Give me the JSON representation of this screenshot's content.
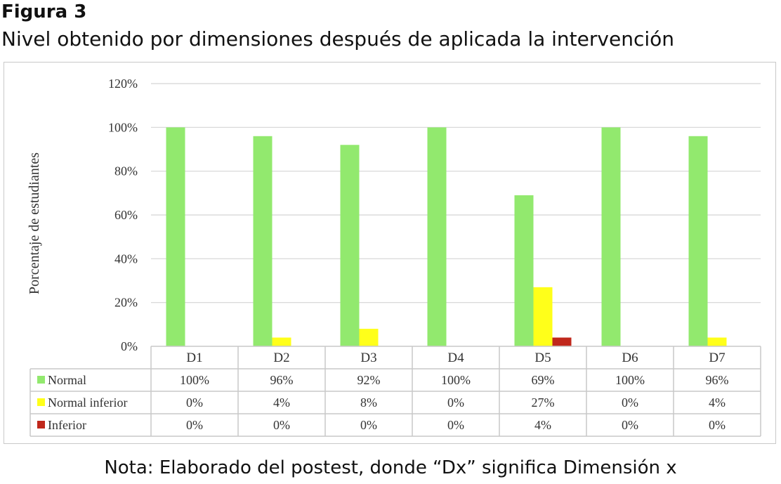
{
  "figure": {
    "label": "Figura 3",
    "title": "Nivel obtenido por dimensiones después de aplicada la intervención",
    "note": "Nota: Elaborado del postest, donde “Dx” significa Dimensión x"
  },
  "chart_data": {
    "type": "bar",
    "title": "",
    "xlabel": "",
    "ylabel": "Porcentaje de estudiantes",
    "ylim": [
      0,
      120
    ],
    "yticks": [
      "0%",
      "20%",
      "40%",
      "60%",
      "80%",
      "100%",
      "120%"
    ],
    "categories": [
      "D1",
      "D2",
      "D3",
      "D4",
      "D5",
      "D6",
      "D7"
    ],
    "grid": true,
    "legend": "data-table",
    "series": [
      {
        "name": "Normal",
        "color": "#92e96e",
        "values": [
          100,
          96,
          92,
          100,
          69,
          100,
          96
        ],
        "labels": [
          "100%",
          "96%",
          "92%",
          "100%",
          "69%",
          "100%",
          "96%"
        ]
      },
      {
        "name": "Normal inferior",
        "color": "#ffff1a",
        "values": [
          0,
          4,
          8,
          0,
          27,
          0,
          4
        ],
        "labels": [
          "0%",
          "4%",
          "8%",
          "0%",
          "27%",
          "0%",
          "4%"
        ]
      },
      {
        "name": "Inferior",
        "color": "#c0281c",
        "values": [
          0,
          0,
          0,
          0,
          4,
          0,
          0
        ],
        "labels": [
          "0%",
          "0%",
          "0%",
          "0%",
          "4%",
          "0%",
          "0%"
        ]
      }
    ]
  }
}
